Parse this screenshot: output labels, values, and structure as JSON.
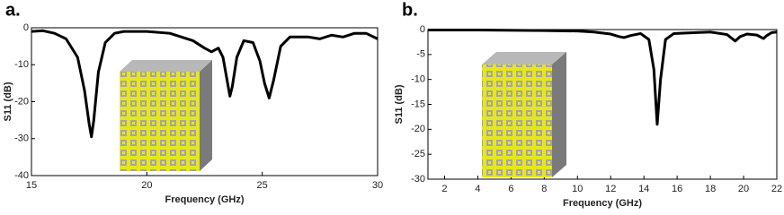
{
  "chart_data": [
    {
      "type": "line",
      "panel_label": "a.",
      "x_label": "Frequency (GHz)",
      "y_label": "S11 (dB)",
      "xlim": [
        15,
        30
      ],
      "xticks": [
        15,
        20,
        25,
        30
      ],
      "ylim": [
        -40,
        0
      ],
      "yticks": [
        -40,
        -30,
        -20,
        -10,
        0
      ],
      "series": [
        {
          "color": "#000000",
          "x": [
            15,
            15.5,
            16,
            16.5,
            17,
            17.3,
            17.5,
            17.6,
            17.7,
            17.9,
            18.2,
            18.6,
            19,
            20,
            21,
            21.5,
            22,
            22.5,
            22.8,
            23.1,
            23.3,
            23.5,
            23.6,
            23.7,
            23.9,
            24.2,
            24.6,
            24.9,
            25.1,
            25.3,
            25.5,
            25.8,
            26.2,
            27,
            27.5,
            28,
            28.5,
            29,
            29.5,
            30
          ],
          "values": [
            -1,
            -0.8,
            -1.5,
            -3,
            -8,
            -17,
            -26,
            -29.5,
            -25,
            -12,
            -4,
            -1.5,
            -1,
            -1,
            -1.5,
            -2.5,
            -3.5,
            -5.5,
            -6.5,
            -5.5,
            -8,
            -15,
            -18.5,
            -16,
            -8,
            -3.5,
            -4,
            -9,
            -15,
            -19,
            -14,
            -5,
            -2.5,
            -2.5,
            -3,
            -2,
            -2.5,
            -1.5,
            -1.5,
            -3
          ]
        }
      ]
    },
    {
      "type": "line",
      "panel_label": "b.",
      "x_label": "Frequency (GHz)",
      "y_label": "S11 (dB)",
      "xlim": [
        1,
        22
      ],
      "xticks": [
        2,
        4,
        6,
        8,
        10,
        12,
        14,
        16,
        18,
        20,
        22
      ],
      "ylim": [
        -30,
        0
      ],
      "yticks": [
        -30,
        -25,
        -20,
        -15,
        -10,
        -5,
        0
      ],
      "series": [
        {
          "color": "#000000",
          "x": [
            1,
            4,
            8,
            10,
            11,
            12,
            12.5,
            12.8,
            13.2,
            13.8,
            14.3,
            14.6,
            14.8,
            15,
            15.3,
            15.8,
            16.5,
            18,
            19,
            19.5,
            19.8,
            20.2,
            20.8,
            21.2,
            21.4,
            21.7,
            22
          ],
          "values": [
            -0.1,
            -0.1,
            -0.2,
            -0.3,
            -0.5,
            -0.9,
            -1.4,
            -1.6,
            -1.2,
            -0.8,
            -2,
            -8,
            -19,
            -10,
            -2,
            -0.8,
            -0.7,
            -0.5,
            -1,
            -2.3,
            -1.4,
            -0.9,
            -1.1,
            -1.8,
            -1.2,
            -0.6,
            -0.5
          ]
        }
      ]
    }
  ]
}
